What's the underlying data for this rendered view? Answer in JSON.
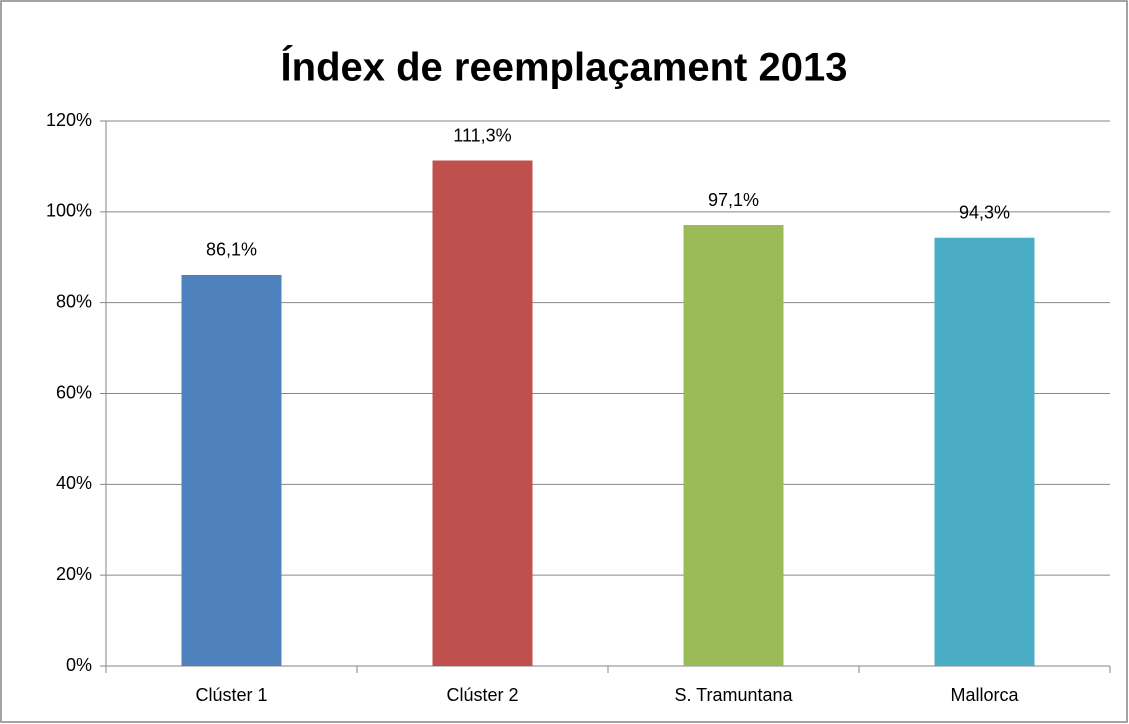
{
  "chart_data": {
    "type": "bar",
    "title": "Índex de reemplaçament 2013",
    "categories": [
      "Clúster 1",
      "Clúster 2",
      "S. Tramuntana",
      "Mallorca"
    ],
    "values": [
      86.1,
      111.3,
      97.1,
      94.3
    ],
    "value_labels": [
      "86,1%",
      "111,3%",
      "97,1%",
      "94,3%"
    ],
    "colors": [
      "#4f81bd",
      "#c0504d",
      "#9bbb59",
      "#4bacc6"
    ],
    "ylim": [
      0,
      120
    ],
    "yticks": [
      {
        "value": 0,
        "label": "0%"
      },
      {
        "value": 20,
        "label": "20%"
      },
      {
        "value": 40,
        "label": "40%"
      },
      {
        "value": 60,
        "label": "60%"
      },
      {
        "value": 80,
        "label": "80%"
      },
      {
        "value": 100,
        "label": "100%"
      },
      {
        "value": 120,
        "label": "120%"
      }
    ],
    "grid": true
  }
}
